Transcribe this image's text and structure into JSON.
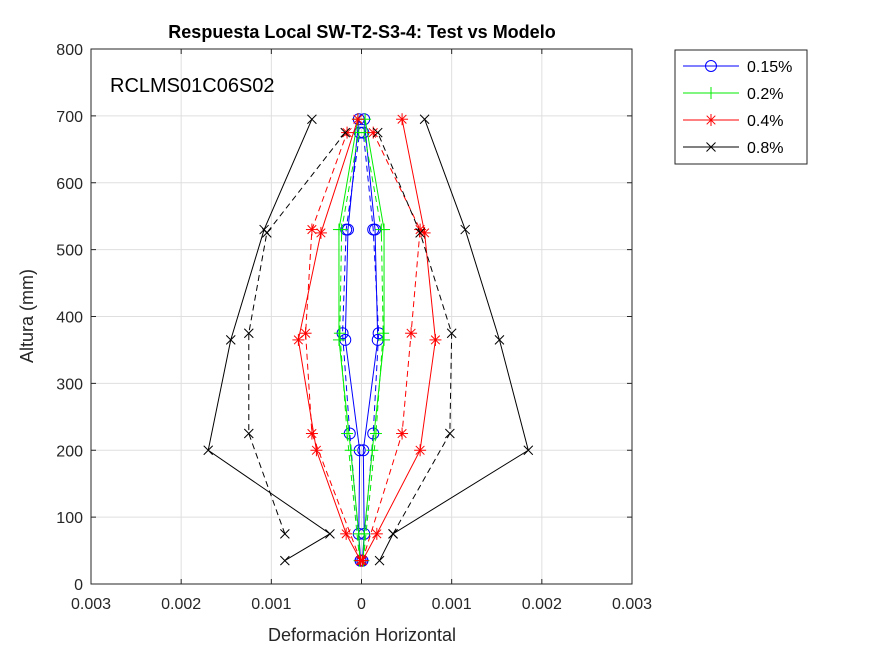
{
  "chart_data": {
    "type": "line",
    "title": "Respuesta Local SW-T2-S3-4: Test vs Modelo",
    "annotation": "RCLMS01C06S02",
    "xlabel": "Deformación Horizontal",
    "ylabel": "Altura (mm)",
    "xlim": [
      -0.003,
      0.003
    ],
    "ylim": [
      0,
      800
    ],
    "x_ticks": [
      -0.003,
      -0.002,
      -0.001,
      0,
      0.001,
      0.002,
      0.003
    ],
    "x_tick_labels": [
      "0.003",
      "0.002",
      "0.001",
      "0",
      "0.001",
      "0.002",
      "0.003"
    ],
    "y_ticks": [
      0,
      100,
      200,
      300,
      400,
      500,
      600,
      700,
      800
    ],
    "y_tick_labels": [
      "0",
      "100",
      "200",
      "300",
      "400",
      "500",
      "600",
      "700",
      "800"
    ],
    "grid": true,
    "legend_position": "outside top-right",
    "series": [
      {
        "name": "0.15%",
        "color": "#0000ff",
        "marker": "circle",
        "dash": false,
        "left": {
          "x": [
            -1e-05,
            -3e-05,
            -2e-05,
            -0.00018,
            -0.00015,
            -3e-05
          ],
          "y": [
            35,
            75,
            200,
            365,
            530,
            695
          ]
        },
        "right": {
          "x": [
            1e-05,
            3e-05,
            2e-05,
            0.00018,
            0.00015,
            3e-05
          ],
          "y": [
            35,
            75,
            200,
            365,
            530,
            695
          ]
        }
      },
      {
        "name": "0.15%",
        "color": "#0000ff",
        "marker": "circle",
        "dash": true,
        "in_legend": false,
        "left": {
          "x": [
            -1e-05,
            -0.00013,
            -0.00021,
            -0.00017,
            -2e-05
          ],
          "y": [
            35,
            225,
            375,
            530,
            675
          ]
        },
        "right": {
          "x": [
            1e-05,
            0.00013,
            0.00019,
            0.00013,
            2e-05
          ],
          "y": [
            35,
            225,
            375,
            530,
            675
          ]
        }
      },
      {
        "name": "0.2%",
        "color": "#00ee00",
        "marker": "plus",
        "dash": false,
        "left": {
          "x": [
            -2e-05,
            -3e-05,
            -0.00012,
            -0.00025,
            -0.00025,
            -4e-05
          ],
          "y": [
            35,
            75,
            200,
            365,
            530,
            695
          ]
        },
        "right": {
          "x": [
            2e-05,
            3e-05,
            0.00012,
            0.00025,
            0.00025,
            4e-05
          ],
          "y": [
            35,
            75,
            200,
            365,
            530,
            695
          ]
        }
      },
      {
        "name": "0.2%",
        "color": "#00ee00",
        "marker": "plus",
        "dash": true,
        "in_legend": false,
        "left": {
          "x": [
            -2e-05,
            -0.00016,
            -0.00024,
            -0.00022,
            -3e-05
          ],
          "y": [
            35,
            225,
            375,
            530,
            675
          ]
        },
        "right": {
          "x": [
            2e-05,
            0.00016,
            0.00024,
            0.00022,
            3e-05
          ],
          "y": [
            35,
            225,
            375,
            530,
            675
          ]
        }
      },
      {
        "name": "0.4%",
        "color": "#ff0000",
        "marker": "asterisk",
        "dash": false,
        "left": {
          "x": [
            -1e-05,
            -0.00017,
            -0.0005,
            -0.0007,
            -0.00045,
            -4e-05
          ],
          "y": [
            35,
            75,
            200,
            365,
            525,
            695
          ]
        },
        "right": {
          "x": [
            1e-05,
            0.00017,
            0.00065,
            0.00082,
            0.0007,
            0.00045
          ],
          "y": [
            35,
            75,
            200,
            365,
            525,
            695
          ]
        }
      },
      {
        "name": "0.4%",
        "color": "#ff0000",
        "marker": "asterisk",
        "dash": true,
        "in_legend": false,
        "left": {
          "x": [
            -1e-05,
            -0.00055,
            -0.00062,
            -0.00055,
            -0.00016
          ],
          "y": [
            35,
            225,
            375,
            530,
            675
          ]
        },
        "right": {
          "x": [
            1e-05,
            0.00045,
            0.00055,
            0.00065,
            0.00013
          ],
          "y": [
            35,
            225,
            375,
            530,
            675
          ]
        }
      },
      {
        "name": "0.8%",
        "color": "#000000",
        "marker": "cross",
        "dash": false,
        "left": {
          "x": [
            -0.00085,
            -0.00035,
            -0.0017,
            -0.00145,
            -0.00108,
            -0.00055
          ],
          "y": [
            35,
            75,
            200,
            365,
            530,
            695
          ]
        },
        "right": {
          "x": [
            0.0002,
            0.00035,
            0.00185,
            0.00153,
            0.00115,
            0.0007
          ],
          "y": [
            35,
            75,
            200,
            365,
            530,
            695
          ]
        }
      },
      {
        "name": "0.8%",
        "color": "#000000",
        "marker": "cross",
        "dash": true,
        "in_legend": false,
        "left": {
          "x": [
            -0.00085,
            -0.00125,
            -0.00125,
            -0.00105,
            -0.00018
          ],
          "y": [
            75,
            225,
            375,
            525,
            675
          ]
        },
        "right": {
          "x": [
            0.00035,
            0.00098,
            0.001,
            0.00065,
            0.00018
          ],
          "y": [
            75,
            225,
            375,
            525,
            675
          ]
        }
      }
    ]
  }
}
